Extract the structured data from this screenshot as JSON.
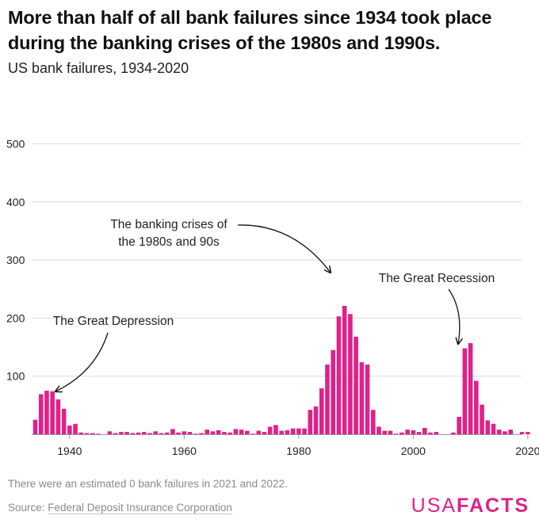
{
  "title": "More than half of all bank failures since 1934 took place during the banking crises of the 1980s and 1990s.",
  "subtitle": "US bank failures, 1934-2020",
  "footnote": "There were an estimated 0 bank failures in 2021 and 2022.",
  "source_label": "Source: ",
  "source_name": "Federal Deposit Insurance Corporation",
  "logo": {
    "part1": "USA",
    "part2": "FACTS"
  },
  "colors": {
    "bar": "#e0218a",
    "grid": "#dcdcdc",
    "axis": "#9a9a9a",
    "text": "#222222"
  },
  "chart_data": {
    "type": "bar",
    "title": "",
    "xlabel": "",
    "ylabel": "",
    "ylim": [
      0,
      540
    ],
    "yticks": [
      100,
      200,
      300,
      400,
      500
    ],
    "xlim": [
      1934,
      2020
    ],
    "xticks": [
      1940,
      1960,
      1980,
      2000,
      2020
    ],
    "grid": true,
    "x": [
      1934,
      1935,
      1936,
      1937,
      1938,
      1939,
      1940,
      1941,
      1942,
      1943,
      1944,
      1945,
      1946,
      1947,
      1948,
      1949,
      1950,
      1951,
      1952,
      1953,
      1954,
      1955,
      1956,
      1957,
      1958,
      1959,
      1960,
      1961,
      1962,
      1963,
      1964,
      1965,
      1966,
      1967,
      1968,
      1969,
      1970,
      1971,
      1972,
      1973,
      1974,
      1975,
      1976,
      1977,
      1978,
      1979,
      1980,
      1981,
      1982,
      1983,
      1984,
      1985,
      1986,
      1987,
      1988,
      1989,
      1990,
      1991,
      1992,
      1993,
      1994,
      1995,
      1996,
      1997,
      1998,
      1999,
      2000,
      2001,
      2002,
      2003,
      2004,
      2005,
      2006,
      2007,
      2008,
      2009,
      2010,
      2011,
      2012,
      2013,
      2014,
      2015,
      2016,
      2017,
      2018,
      2019,
      2020
    ],
    "values": [
      25,
      69,
      75,
      74,
      60,
      44,
      15,
      18,
      3,
      2,
      2,
      1,
      0,
      5,
      2,
      4,
      4,
      2,
      3,
      4,
      2,
      5,
      2,
      3,
      9,
      3,
      5,
      4,
      1,
      2,
      8,
      5,
      7,
      4,
      3,
      9,
      8,
      6,
      1,
      6,
      4,
      13,
      16,
      6,
      7,
      10,
      10,
      10,
      42,
      48,
      79,
      120,
      145,
      203,
      221,
      207,
      168,
      124,
      120,
      42,
      13,
      6,
      6,
      1,
      3,
      8,
      7,
      4,
      11,
      3,
      4,
      0,
      0,
      3,
      30,
      148,
      157,
      92,
      51,
      24,
      18,
      8,
      5,
      8,
      0,
      4,
      4
    ],
    "annotations": [
      {
        "text_lines": [
          "The Great Depression"
        ]
      },
      {
        "text_lines": [
          "The banking crises of",
          "the 1980s and 90s"
        ]
      },
      {
        "text_lines": [
          "The Great Recession"
        ]
      }
    ]
  }
}
